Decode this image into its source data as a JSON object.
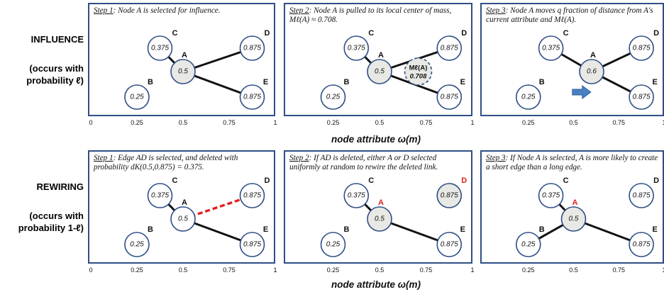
{
  "rows": [
    {
      "key": "influence",
      "title": "INFLUENCE",
      "subtitle_line1": "(occurs with",
      "subtitle_line2": "probability ℓ)",
      "panels": [
        {
          "step": "Step 1",
          "caption": ": Node A is selected for influence.",
          "nodes": [
            {
              "id": "C",
              "value": "0.375",
              "label": "C",
              "attr": 0.375,
              "level": "top",
              "filled": false,
              "red": false
            },
            {
              "id": "A",
              "value": "0.5",
              "label": "A",
              "attr": 0.5,
              "level": "mid",
              "filled": true,
              "red": false
            },
            {
              "id": "D",
              "value": "0.875",
              "label": "D",
              "attr": 0.875,
              "level": "top",
              "filled": false,
              "red": false
            },
            {
              "id": "B",
              "value": "0.25",
              "label": "B",
              "attr": 0.25,
              "level": "bottom",
              "filled": false,
              "red": false
            },
            {
              "id": "E",
              "value": "0.875",
              "label": "E",
              "attr": 0.875,
              "level": "bottom",
              "filled": false,
              "red": false
            }
          ],
          "edges": [
            [
              "C",
              "A",
              "solid"
            ],
            [
              "A",
              "D",
              "solid"
            ],
            [
              "A",
              "E",
              "solid"
            ]
          ]
        },
        {
          "step": "Step 2",
          "caption": ": Node A is pulled to its local center of mass, Mℓ(A) ≈ 0.708.",
          "nodes": [
            {
              "id": "C",
              "value": "0.375",
              "label": "C",
              "attr": 0.375,
              "level": "top",
              "filled": false,
              "red": false
            },
            {
              "id": "A",
              "value": "0.5",
              "label": "A",
              "attr": 0.5,
              "level": "mid",
              "filled": true,
              "red": false
            },
            {
              "id": "D",
              "value": "0.875",
              "label": "D",
              "attr": 0.875,
              "level": "top",
              "filled": false,
              "red": false
            },
            {
              "id": "B",
              "value": "0.25",
              "label": "B",
              "attr": 0.25,
              "level": "bottom",
              "filled": false,
              "red": false
            },
            {
              "id": "E",
              "value": "0.875",
              "label": "E",
              "attr": 0.875,
              "level": "bottom",
              "filled": false,
              "red": false
            }
          ],
          "edges": [
            [
              "C",
              "A",
              "solid"
            ],
            [
              "A",
              "D",
              "solid"
            ],
            [
              "A",
              "E",
              "solid"
            ]
          ],
          "com": {
            "name": "Mℓ(A)",
            "value": "0.708",
            "attr": 0.708
          }
        },
        {
          "step": "Step 3",
          "caption": ": Node A moves q fraction of distance from A's current attribute and Mℓ(A).",
          "nodes": [
            {
              "id": "C",
              "value": "0.375",
              "label": "C",
              "attr": 0.375,
              "level": "top",
              "filled": false,
              "red": false
            },
            {
              "id": "A",
              "value": "0.6",
              "label": "A",
              "attr": 0.6,
              "level": "mid",
              "filled": true,
              "red": false
            },
            {
              "id": "D",
              "value": "0.875",
              "label": "D",
              "attr": 0.875,
              "level": "top",
              "filled": false,
              "red": false
            },
            {
              "id": "B",
              "value": "0.25",
              "label": "B",
              "attr": 0.25,
              "level": "bottom",
              "filled": false,
              "red": false
            },
            {
              "id": "E",
              "value": "0.875",
              "label": "E",
              "attr": 0.875,
              "level": "bottom",
              "filled": false,
              "red": false
            }
          ],
          "edges": [
            [
              "C",
              "A",
              "solid"
            ],
            [
              "A",
              "D",
              "solid"
            ],
            [
              "A",
              "E",
              "solid"
            ]
          ],
          "arrow": {
            "color": "#4a7fc1",
            "attr": 0.47
          }
        }
      ]
    },
    {
      "key": "rewiring",
      "title": "REWIRING",
      "subtitle_line1": "(occurs with",
      "subtitle_line2": "probability 1-ℓ)",
      "panels": [
        {
          "step": "Step 1",
          "caption": ": Edge AD is selected, and deleted with probability dK(0.5,0.875) = 0.375.",
          "nodes": [
            {
              "id": "C",
              "value": "0.375",
              "label": "C",
              "attr": 0.375,
              "level": "top",
              "filled": false,
              "red": false
            },
            {
              "id": "A",
              "value": "0.5",
              "label": "A",
              "attr": 0.5,
              "level": "mid",
              "filled": false,
              "red": false
            },
            {
              "id": "D",
              "value": "0.875",
              "label": "D",
              "attr": 0.875,
              "level": "top",
              "filled": false,
              "red": false
            },
            {
              "id": "B",
              "value": "0.25",
              "label": "B",
              "attr": 0.25,
              "level": "bottom",
              "filled": false,
              "red": false
            },
            {
              "id": "E",
              "value": "0.875",
              "label": "E",
              "attr": 0.875,
              "level": "bottom",
              "filled": false,
              "red": false
            }
          ],
          "edges": [
            [
              "C",
              "A",
              "solid"
            ],
            [
              "A",
              "D",
              "dashed"
            ],
            [
              "A",
              "E",
              "solid"
            ]
          ]
        },
        {
          "step": "Step 2",
          "caption": ": If AD is deleted, either A or D selected uniformly at random to rewire the deleted link.",
          "nodes": [
            {
              "id": "C",
              "value": "0.375",
              "label": "C",
              "attr": 0.375,
              "level": "top",
              "filled": false,
              "red": false
            },
            {
              "id": "A",
              "value": "0.5",
              "label": "A",
              "attr": 0.5,
              "level": "mid",
              "filled": true,
              "red": true
            },
            {
              "id": "D",
              "value": "0.875",
              "label": "D",
              "attr": 0.875,
              "level": "top",
              "filled": true,
              "red": true
            },
            {
              "id": "B",
              "value": "0.25",
              "label": "B",
              "attr": 0.25,
              "level": "bottom",
              "filled": false,
              "red": false
            },
            {
              "id": "E",
              "value": "0.875",
              "label": "E",
              "attr": 0.875,
              "level": "bottom",
              "filled": false,
              "red": false
            }
          ],
          "edges": [
            [
              "C",
              "A",
              "solid"
            ],
            [
              "A",
              "E",
              "solid"
            ]
          ]
        },
        {
          "step": "Step 3",
          "caption": ": If Node A is selected, A is more likely to create a short edge than a long edge.",
          "nodes": [
            {
              "id": "C",
              "value": "0.375",
              "label": "C",
              "attr": 0.375,
              "level": "top",
              "filled": false,
              "red": false
            },
            {
              "id": "A",
              "value": "0.5",
              "label": "A",
              "attr": 0.5,
              "level": "mid",
              "filled": true,
              "red": true
            },
            {
              "id": "D",
              "value": "0.875",
              "label": "D",
              "attr": 0.875,
              "level": "top",
              "filled": false,
              "red": false
            },
            {
              "id": "B",
              "value": "0.25",
              "label": "B",
              "attr": 0.25,
              "level": "bottom",
              "filled": false,
              "red": false
            },
            {
              "id": "E",
              "value": "0.875",
              "label": "E",
              "attr": 0.875,
              "level": "bottom",
              "filled": false,
              "red": false
            }
          ],
          "edges": [
            [
              "C",
              "A",
              "solid"
            ],
            [
              "B",
              "A",
              "solid"
            ],
            [
              "A",
              "E",
              "solid"
            ]
          ]
        }
      ]
    }
  ],
  "axis": {
    "ticks": [
      "0",
      "0.25",
      "0.5",
      "0.75",
      "1"
    ],
    "tick_values": [
      0,
      0.25,
      0.5,
      0.75,
      1
    ],
    "title": "node attribute ω(m)"
  },
  "colors": {
    "panel_border": "#2f4f86",
    "node_border": "#2f4f86",
    "highlight_red": "#e02020",
    "arrow_blue": "#4a7fc1"
  }
}
